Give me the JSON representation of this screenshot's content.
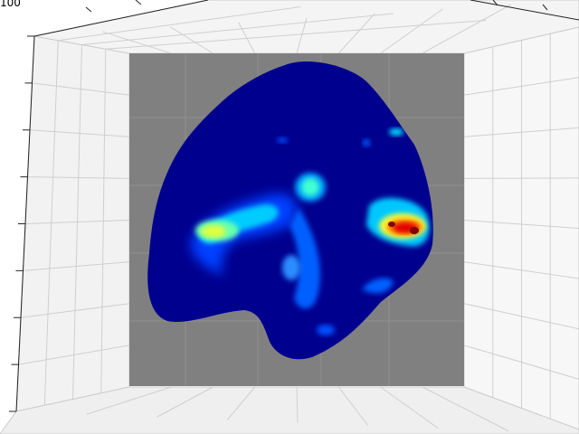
{
  "chart_data": {
    "type": "heatmap",
    "view": "3d",
    "title": "",
    "xlabel": "",
    "ylabel": "",
    "zlabel": "",
    "grid": true,
    "colormap": "jet",
    "masked_background": "#808080",
    "pane_colors": [
      "#f2f2f2",
      "#ebebeb",
      "#f7f7f7"
    ],
    "visible_tick_labels": [
      "100"
    ],
    "hotspots": [
      {
        "region": "right-lobe",
        "level": 1.0
      },
      {
        "region": "left-lobe",
        "level": 0.6
      },
      {
        "region": "upper-center",
        "level": 0.45
      },
      {
        "region": "lower-center",
        "level": 0.35
      }
    ]
  }
}
